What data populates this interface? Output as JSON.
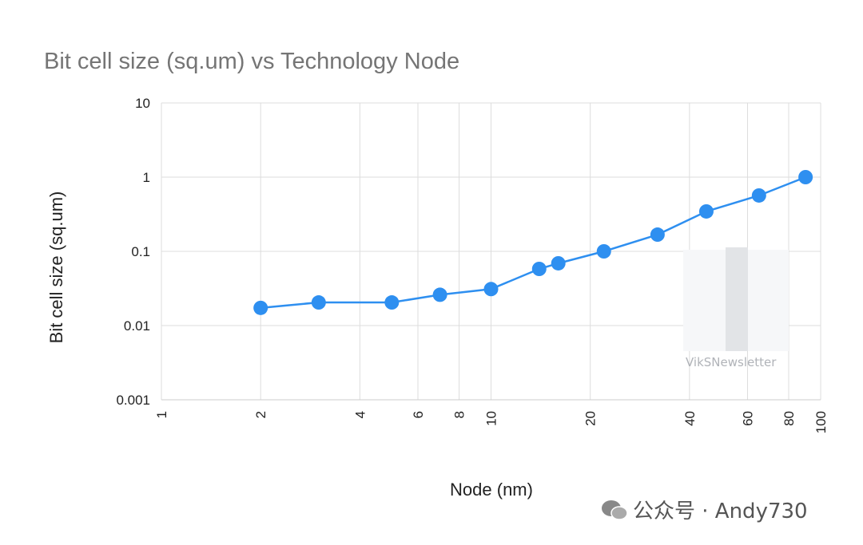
{
  "chart_data": {
    "type": "line",
    "title": "Bit cell size (sq.um) vs Technology Node",
    "xlabel": "Node (nm)",
    "ylabel": "Bit cell size (sq.um)",
    "xscale": "log",
    "yscale": "log",
    "xlim": [
      1,
      100
    ],
    "ylim": [
      0.001,
      10
    ],
    "x_ticks": [
      1,
      2,
      4,
      6,
      8,
      10,
      20,
      40,
      60,
      80,
      100
    ],
    "x_tick_labels": [
      "1",
      "2",
      "4",
      "6",
      "8",
      "10",
      "20",
      "40",
      "60",
      "80",
      "100"
    ],
    "y_ticks": [
      0.001,
      0.01,
      0.1,
      1,
      10
    ],
    "y_tick_labels": [
      "0.001",
      "0.01",
      "0.1",
      "1",
      "10"
    ],
    "grid": true,
    "legend": "none",
    "series": [
      {
        "color": "#2e8ff0",
        "marker": "circle",
        "x": [
          2,
          3,
          5,
          7,
          10,
          14,
          16,
          22,
          32,
          45,
          65,
          90
        ],
        "y": [
          0.0173,
          0.0205,
          0.0205,
          0.026,
          0.031,
          0.058,
          0.069,
          0.1,
          0.168,
          0.345,
          0.566,
          1.0
        ]
      }
    ]
  },
  "watermarks": {
    "chart_watermark": "VikSNewsletter",
    "account": "公众号 · Andy730"
  }
}
